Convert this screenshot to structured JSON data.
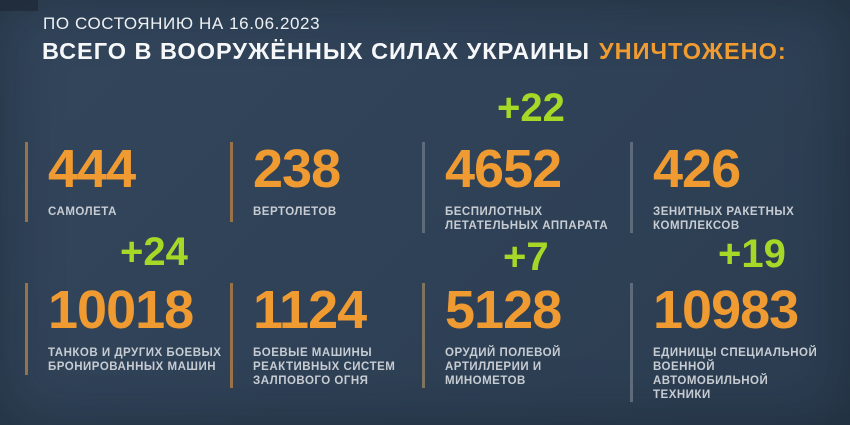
{
  "colors": {
    "background": "#2f4156",
    "number_orange": "#ef9b31",
    "title_accent_orange": "#f09c30",
    "delta_green": "#a6d827",
    "label_gray": "#c7ccd3",
    "bar_warm": "#9a7248",
    "bar_cool": "#5d6b7c"
  },
  "header": {
    "date_line": "ПО СОСТОЯНИЮ НА 16.06.2023",
    "title_main": "ВСЕГО В ВООРУЖЁННЫХ СИЛАХ УКРАИНЫ",
    "title_accent": "УНИЧТОЖЕНО:"
  },
  "stats": [
    {
      "value": "444",
      "label": "САМОЛЕТА",
      "delta": ""
    },
    {
      "value": "238",
      "label": "ВЕРТОЛЕТОВ",
      "delta": ""
    },
    {
      "value": "4652",
      "label": "БЕСПИЛОТНЫХ\nЛЕТАТЕЛЬНЫХ АППАРАТА",
      "delta": "+22"
    },
    {
      "value": "426",
      "label": "ЗЕНИТНЫХ РАКЕТНЫХ\nКОМПЛЕКСОВ",
      "delta": ""
    },
    {
      "value": "10018",
      "label": "ТАНКОВ И ДРУГИХ БОЕВЫХ\nБРОНИРОВАННЫХ МАШИН",
      "delta": "+24"
    },
    {
      "value": "1124",
      "label": "БОЕВЫЕ МАШИНЫ\nРЕАКТИВНЫХ СИСТЕМ\nЗАЛПОВОГО ОГНЯ",
      "delta": ""
    },
    {
      "value": "5128",
      "label": "ОРУДИЙ ПОЛЕВОЙ\nАРТИЛЛЕРИИ И МИНОМЕТОВ",
      "delta": "+7"
    },
    {
      "value": "10983",
      "label": "ЕДИНИЦЫ СПЕЦИАЛЬНОЙ\nВОЕННОЙ АВТОМОБИЛЬНОЙ\nТЕХНИКИ",
      "delta": "+19"
    }
  ],
  "chart_data": {
    "type": "table",
    "title": "ВСЕГО В ВООРУЖЁННЫХ СИЛАХ УКРАИНЫ УНИЧТОЖЕНО:",
    "subtitle": "ПО СОСТОЯНИЮ НА 16.06.2023",
    "categories": [
      "самолета",
      "вертолетов",
      "беспилотных летательных аппарата",
      "зенитных ракетных комплексов",
      "танков и других боевых бронированных машин",
      "боевые машины реактивных систем залпового огня",
      "орудий полевой артиллерии и минометов",
      "единицы специальной военной автомобильной техники"
    ],
    "values": [
      444,
      238,
      4652,
      426,
      10018,
      1124,
      5128,
      10983
    ],
    "daily_increase": [
      null,
      null,
      22,
      null,
      24,
      null,
      7,
      19
    ],
    "layout": "2 rows x 4 columns, green deltas shown above updated figures"
  }
}
